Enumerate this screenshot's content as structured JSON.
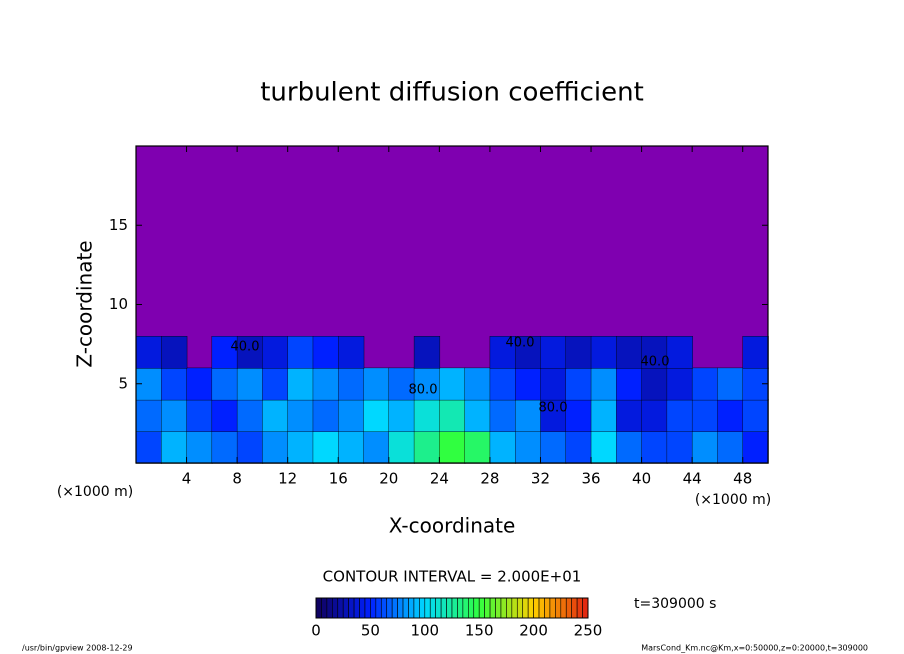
{
  "chart_data": {
    "type": "contour",
    "title": "turbulent diffusion coefficient",
    "x_label": "X-coordinate",
    "y_label": "Z-coordinate",
    "axis_unit": "(×1000 m)",
    "xlim": [
      0,
      50
    ],
    "ylim": [
      0,
      20
    ],
    "xticks": [
      4,
      8,
      12,
      16,
      20,
      24,
      28,
      32,
      36,
      40,
      44,
      48
    ],
    "yticks": [
      5,
      10,
      15
    ],
    "x": [
      1,
      3,
      5,
      7,
      9,
      11,
      13,
      15,
      17,
      19,
      21,
      23,
      25,
      27,
      29,
      31,
      33,
      35,
      37,
      39,
      41,
      43,
      45,
      47,
      49
    ],
    "z": [
      1,
      3,
      5,
      7
    ],
    "values": [
      [
        60,
        90,
        80,
        70,
        60,
        80,
        90,
        100,
        90,
        80,
        110,
        130,
        150,
        140,
        90,
        80,
        70,
        60,
        100,
        70,
        60,
        60,
        80,
        70,
        50
      ],
      [
        70,
        80,
        60,
        50,
        70,
        90,
        80,
        70,
        80,
        100,
        90,
        110,
        120,
        90,
        70,
        80,
        40,
        50,
        90,
        40,
        40,
        60,
        60,
        50,
        60
      ],
      [
        80,
        60,
        50,
        70,
        80,
        60,
        90,
        80,
        70,
        80,
        70,
        80,
        90,
        80,
        60,
        50,
        40,
        60,
        80,
        50,
        30,
        40,
        60,
        70,
        60
      ],
      [
        40,
        30,
        null,
        50,
        30,
        40,
        60,
        50,
        40,
        null,
        null,
        30,
        null,
        null,
        40,
        30,
        40,
        30,
        40,
        30,
        30,
        40,
        null,
        null,
        40
      ]
    ],
    "missing_color": "#7f00b0",
    "colormap": [
      "#10005a",
      "#0020ff",
      "#00d8ff",
      "#30ff40",
      "#ffd000",
      "#e02010"
    ],
    "clim": [
      0,
      250
    ],
    "colorbar_ticks": [
      0,
      50,
      100,
      150,
      200,
      250
    ],
    "contour_labels": [
      {
        "value": 40,
        "label": "40.0"
      },
      {
        "value": 40,
        "label": "40.0"
      },
      {
        "value": 40,
        "label": "40.0"
      },
      {
        "value": 80,
        "label": "80.0"
      },
      {
        "value": 80,
        "label": "80.0"
      }
    ],
    "contour_interval": "CONTOUR INTERVAL = 2.000E+01",
    "time_label": "t=309000 s",
    "footer_left": "/usr/bin/gpview  2008-12-29",
    "footer_right": "MarsCond_Km.nc@Km,x=0:50000,z=0:20000,t=309000"
  }
}
